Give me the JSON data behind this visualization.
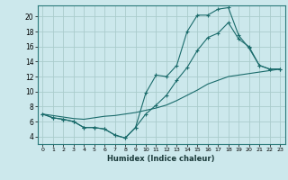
{
  "title": "",
  "xlabel": "Humidex (Indice chaleur)",
  "bg_color": "#cce8ec",
  "grid_color": "#aacccc",
  "line_color": "#1a6b6b",
  "xlim": [
    -0.5,
    23.5
  ],
  "ylim": [
    3,
    21.5
  ],
  "yticks": [
    4,
    6,
    8,
    10,
    12,
    14,
    16,
    18,
    20
  ],
  "xticks": [
    0,
    1,
    2,
    3,
    4,
    5,
    6,
    7,
    8,
    9,
    10,
    11,
    12,
    13,
    14,
    15,
    16,
    17,
    18,
    19,
    20,
    21,
    22,
    23
  ],
  "series1_x": [
    0,
    1,
    2,
    3,
    4,
    5,
    6,
    7,
    8,
    9,
    10,
    11,
    12,
    13,
    14,
    15,
    16,
    17,
    18,
    19,
    20,
    21,
    22,
    23
  ],
  "series1_y": [
    7.0,
    6.5,
    6.3,
    6.0,
    5.2,
    5.2,
    5.0,
    4.2,
    3.8,
    5.2,
    9.8,
    12.2,
    12.0,
    13.5,
    18.0,
    20.2,
    20.2,
    21.0,
    21.2,
    17.5,
    15.8,
    13.5,
    13.0,
    13.0
  ],
  "series2_x": [
    0,
    1,
    2,
    3,
    4,
    5,
    6,
    7,
    8,
    9,
    10,
    11,
    12,
    13,
    14,
    15,
    16,
    17,
    18,
    19,
    20,
    21,
    22,
    23
  ],
  "series2_y": [
    7.0,
    6.5,
    6.3,
    6.0,
    5.2,
    5.2,
    5.0,
    4.2,
    3.8,
    5.2,
    7.0,
    8.2,
    9.5,
    11.5,
    13.2,
    15.5,
    17.2,
    17.8,
    19.2,
    17.0,
    16.0,
    13.5,
    13.0,
    13.0
  ],
  "series3_x": [
    0,
    1,
    2,
    3,
    4,
    5,
    6,
    7,
    8,
    9,
    10,
    11,
    12,
    13,
    14,
    15,
    16,
    17,
    18,
    19,
    20,
    21,
    22,
    23
  ],
  "series3_y": [
    7.0,
    6.8,
    6.6,
    6.4,
    6.3,
    6.5,
    6.7,
    6.8,
    7.0,
    7.2,
    7.5,
    7.8,
    8.2,
    8.8,
    9.5,
    10.2,
    11.0,
    11.5,
    12.0,
    12.2,
    12.4,
    12.6,
    12.8,
    13.0
  ]
}
